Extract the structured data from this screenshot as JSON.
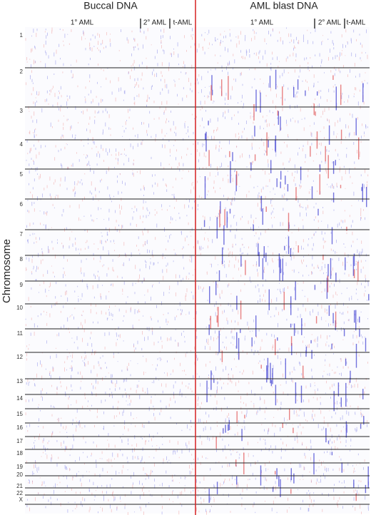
{
  "panels": [
    {
      "title": "Buccal DNA",
      "groups": [
        "1° AML",
        "2° AML",
        "t-AML"
      ]
    },
    {
      "title": "AML blast DNA",
      "groups": [
        "1° AML",
        "2° AML",
        "t-AML"
      ]
    }
  ],
  "y_axis_label": "Chromosome",
  "chromosomes": [
    "1",
    "2",
    "3",
    "4",
    "5",
    "6",
    "7",
    "8",
    "9",
    "10",
    "11",
    "12",
    "13",
    "14",
    "15",
    "16",
    "17",
    "18",
    "19",
    "20",
    "21",
    "22",
    "X"
  ]
}
